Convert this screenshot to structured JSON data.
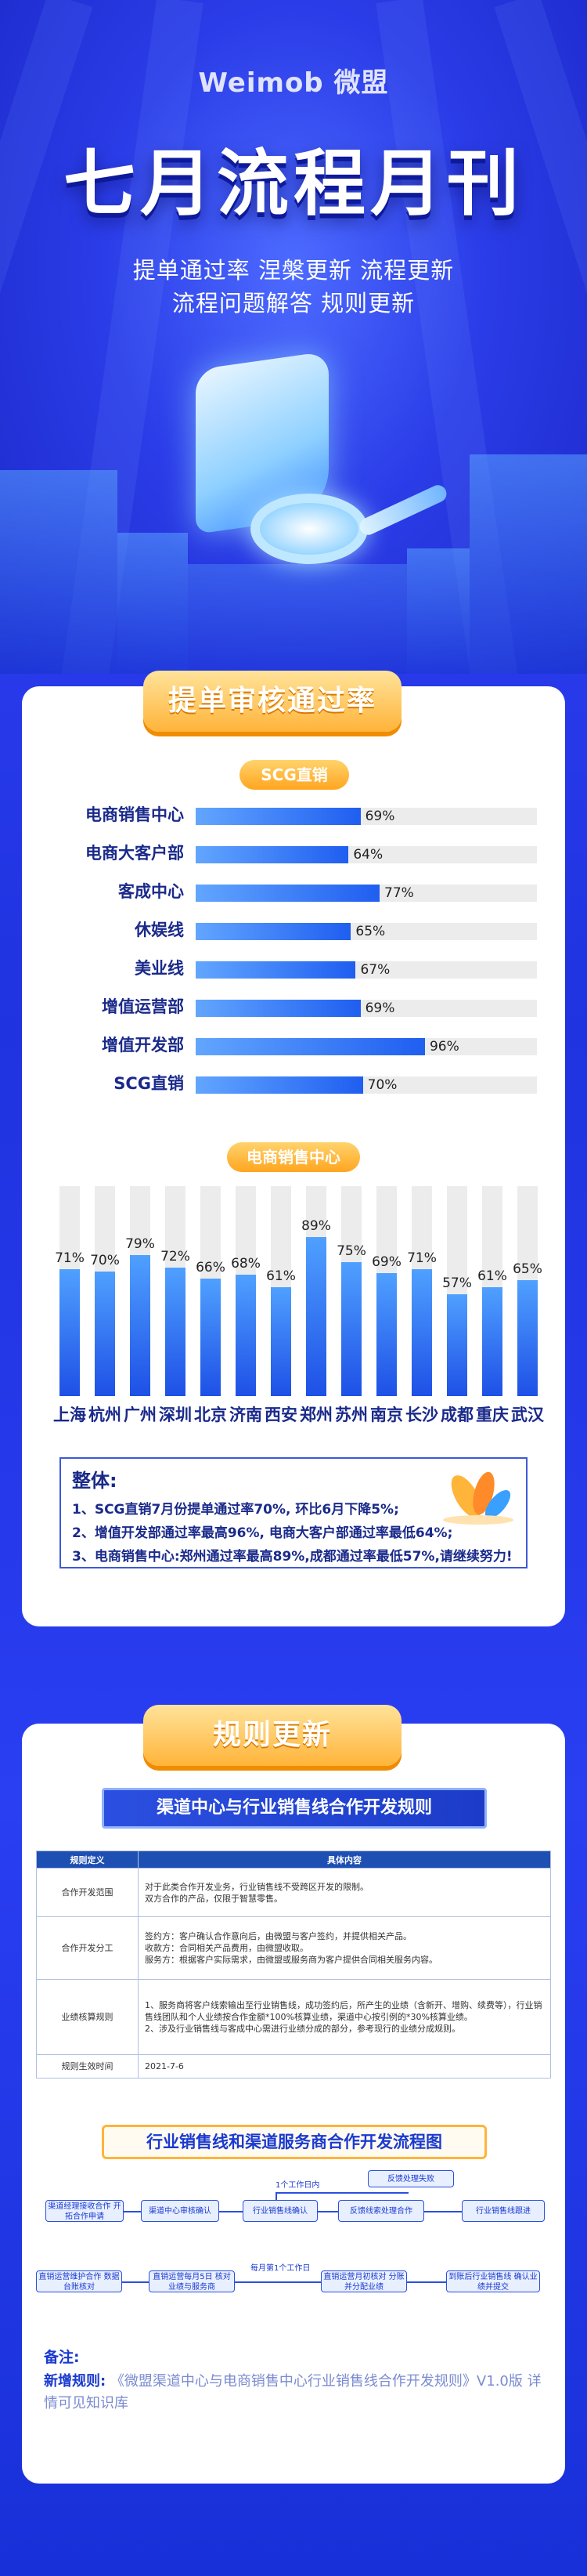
{
  "header": {
    "brand": "Weimob 微盟",
    "title": "七月流程月刊",
    "subtitle_line1": "提单通过率  涅槃更新  流程更新",
    "subtitle_line2": "流程问题解答  规则更新"
  },
  "section1": {
    "tab": "提单审核通过率",
    "chart1_pill": "SCG直销",
    "chart2_pill": "电商销售中心"
  },
  "chart_data": [
    {
      "type": "bar",
      "orientation": "horizontal",
      "title": "SCG直销",
      "categories": [
        "电商销售中心",
        "电商大客户部",
        "客成中心",
        "休娱线",
        "美业线",
        "增值运营部",
        "增值开发部",
        "SCG直销"
      ],
      "values": [
        69,
        64,
        77,
        65,
        67,
        69,
        96,
        70
      ],
      "value_labels": [
        "69%",
        "64%",
        "77%",
        "65%",
        "67%",
        "69%",
        "96%",
        "70%"
      ],
      "xlim": [
        0,
        100
      ]
    },
    {
      "type": "bar",
      "orientation": "vertical",
      "title": "电商销售中心",
      "categories": [
        "上海",
        "杭州",
        "广州",
        "深圳",
        "北京",
        "济南",
        "西安",
        "郑州",
        "苏州",
        "南京",
        "长沙",
        "成都",
        "重庆",
        "武汉"
      ],
      "values": [
        71,
        70,
        79,
        72,
        66,
        68,
        61,
        89,
        75,
        69,
        71,
        57,
        61,
        65
      ],
      "value_labels": [
        "71%",
        "70%",
        "79%",
        "72%",
        "66%",
        "68%",
        "61%",
        "89%",
        "75%",
        "69%",
        "71%",
        "57%",
        "61%",
        "65%"
      ],
      "ylim": [
        0,
        100
      ]
    }
  ],
  "summary": {
    "heading": "整体:",
    "lines": [
      "1、SCG直销7月份提单通过率70%, 环比6月下降5%;",
      "2、增值开发部通过率最高96%, 电商大客户部通过率最低64%;",
      "3、电商销售中心:郑州通过率最高89%,成都通过率最低57%,请继续努力!"
    ]
  },
  "section2": {
    "tab": "规则更新",
    "rule_banner": "渠道中心与行业销售线合作开发规则",
    "table": {
      "headers": [
        "规则定义",
        "具体内容"
      ],
      "rows": [
        [
          "合作开发范围",
          "对于此类合作开发业务，行业销售线不受跨区开发的限制。\n双方合作的产品，仅限于智慧零售。"
        ],
        [
          "合作开发分工",
          "签约方：客户确认合作意向后，由微盟与客户签约，并提供相关产品。\n收款方：合同相关产品费用，由微盟收取。\n服务方：根据客户实际需求，由微盟或服务商为客户提供合同相关服务内容。"
        ],
        [
          "业绩核算规则",
          "1、服务商将客户线索输出至行业销售线，成功签约后，所产生的业绩（含新开、增购、续费等），行业销售线团队和个人业绩按合作金额*100%核算业绩，渠道中心按引例的*30%核算业绩。\n2、涉及行业销售线与客成中心需进行业绩分成的部分，参考现行的业绩分成规则。"
        ],
        [
          "规则生效时间",
          "2021-7-6"
        ]
      ]
    },
    "flow_banner": "行业销售线和渠道服务商合作开发流程图",
    "flow": {
      "top_note": "1个工作日内",
      "reject": "反馈处理失败",
      "row1": [
        "渠道经理接收合作\n开拓合作申请",
        "渠道中心审核确认",
        "行业销售线确认",
        "反馈线索处理合作",
        "行业销售线跟进"
      ],
      "mid_note": "每月第1个工作日",
      "row2": [
        "直销运营维护合作\n数据台账核对",
        "直销运营每月5日\n核对业绩与服务商",
        "直销运营月初核对\n分账并分配业绩",
        "到账后行业销售线\n确认业绩并提交"
      ]
    },
    "note_heading": "备注:",
    "note_label": "新增规则:",
    "note_text": "《微盟渠道中心与电商销售中心行业销售线合作开发规则》V1.0版  详情可见知识库"
  }
}
